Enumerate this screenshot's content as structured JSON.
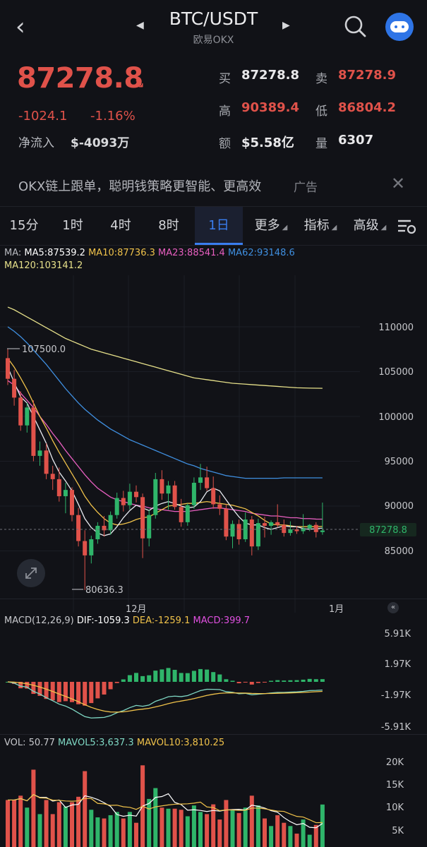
{
  "header": {
    "pair": "BTC/USDT",
    "exchange": "欧易OKX"
  },
  "ticker": {
    "last": "87278.8",
    "change": "-1024.1",
    "change_pct": "-1.16%",
    "inflow_label": "净流入",
    "inflow_value": "$-4093万",
    "bid_label": "买",
    "bid": "87278.8",
    "ask_label": "卖",
    "ask": "87278.9",
    "high_label": "高",
    "high": "90389.4",
    "low_label": "低",
    "low": "86804.2",
    "amount_label": "额",
    "amount": "$5.58亿",
    "volume_label": "量",
    "volume": "6307"
  },
  "ad": {
    "text": "OKX链上跟单，聪明钱策略更智能、更高效",
    "tag": "广告"
  },
  "tabs": [
    "15分",
    "1时",
    "4时",
    "8时",
    "1日",
    "更多",
    "指标",
    "高级"
  ],
  "active_tab": "1日",
  "ma": {
    "label": "MA:",
    "ma5": "MA5:87539.2",
    "ma10": "MA10:87736.3",
    "ma23": "MA23:88541.4",
    "ma62": "MA62:93148.6",
    "ma120": "MA120:103141.2"
  },
  "price_axis": [
    "110000",
    "105000",
    "100000",
    "95000",
    "90000",
    "85000"
  ],
  "current_price_tag": "87278.8",
  "high_marker": "107500.0",
  "low_marker": "80636.3",
  "time_axis": [
    "12月",
    "1月"
  ],
  "macd": {
    "title": "MACD(12,26,9)",
    "dif": "DIF:-1059.3",
    "dea": "DEA:-1259.1",
    "macd": "MACD:399.7",
    "axis": [
      "5.91K",
      "1.97K",
      "-1.97K",
      "-5.91K"
    ]
  },
  "vol": {
    "vol": "VOL: 50.77",
    "mavol5": "MAVOL5:3,637.3",
    "mavol10": "MAVOL10:3,810.25",
    "axis": [
      "20K",
      "15K",
      "10K",
      "5K"
    ]
  },
  "colors": {
    "up": "#2fb56a",
    "down": "#e0524a",
    "accent": "#3a7ef0",
    "ma5": "#e8eaf0",
    "ma10": "#f0c24a",
    "ma23": "#e85fc0",
    "ma62": "#3f8fe0",
    "ma120": "#e6e08a"
  },
  "chart_data": {
    "type": "candlestick",
    "interval": "1日",
    "candles": [
      {
        "o": 106500,
        "h": 107500,
        "l": 103500,
        "c": 104200
      },
      {
        "o": 104200,
        "h": 105200,
        "l": 101200,
        "c": 102100
      },
      {
        "o": 102100,
        "h": 102800,
        "l": 98400,
        "c": 99000
      },
      {
        "o": 99000,
        "h": 101500,
        "l": 98200,
        "c": 101000
      },
      {
        "o": 101000,
        "h": 101800,
        "l": 95000,
        "c": 95600
      },
      {
        "o": 95600,
        "h": 97200,
        "l": 94500,
        "c": 96200
      },
      {
        "o": 96200,
        "h": 97000,
        "l": 93000,
        "c": 93600
      },
      {
        "o": 93600,
        "h": 94500,
        "l": 91800,
        "c": 93000
      },
      {
        "o": 93000,
        "h": 94300,
        "l": 90500,
        "c": 91100
      },
      {
        "o": 91100,
        "h": 92600,
        "l": 89200,
        "c": 91800
      },
      {
        "o": 91800,
        "h": 92100,
        "l": 88300,
        "c": 89000
      },
      {
        "o": 89000,
        "h": 89800,
        "l": 85500,
        "c": 86100
      },
      {
        "o": 86100,
        "h": 87300,
        "l": 80636,
        "c": 84500
      },
      {
        "o": 84500,
        "h": 86700,
        "l": 83600,
        "c": 86300
      },
      {
        "o": 86300,
        "h": 88200,
        "l": 85800,
        "c": 87800
      },
      {
        "o": 87800,
        "h": 88900,
        "l": 86600,
        "c": 87300
      },
      {
        "o": 87300,
        "h": 89400,
        "l": 86800,
        "c": 89000
      },
      {
        "o": 89000,
        "h": 91500,
        "l": 88600,
        "c": 90900
      },
      {
        "o": 90900,
        "h": 91700,
        "l": 89400,
        "c": 90100
      },
      {
        "o": 90100,
        "h": 92500,
        "l": 89600,
        "c": 91600
      },
      {
        "o": 91600,
        "h": 92300,
        "l": 90400,
        "c": 91000
      },
      {
        "o": 91000,
        "h": 91400,
        "l": 84200,
        "c": 86400
      },
      {
        "o": 86400,
        "h": 89600,
        "l": 85500,
        "c": 89000
      },
      {
        "o": 89000,
        "h": 93700,
        "l": 88600,
        "c": 93000
      },
      {
        "o": 93000,
        "h": 94000,
        "l": 90700,
        "c": 91400
      },
      {
        "o": 91400,
        "h": 92800,
        "l": 89600,
        "c": 92300
      },
      {
        "o": 92300,
        "h": 92800,
        "l": 89600,
        "c": 89900
      },
      {
        "o": 89900,
        "h": 90800,
        "l": 87700,
        "c": 88200
      },
      {
        "o": 88200,
        "h": 90300,
        "l": 87800,
        "c": 90100
      },
      {
        "o": 90100,
        "h": 93200,
        "l": 89700,
        "c": 92600
      },
      {
        "o": 92600,
        "h": 94700,
        "l": 91800,
        "c": 93200
      },
      {
        "o": 93200,
        "h": 94400,
        "l": 91700,
        "c": 92000
      },
      {
        "o": 92000,
        "h": 93300,
        "l": 89700,
        "c": 90200
      },
      {
        "o": 90200,
        "h": 91200,
        "l": 89000,
        "c": 89700
      },
      {
        "o": 89700,
        "h": 90200,
        "l": 86200,
        "c": 86600
      },
      {
        "o": 86600,
        "h": 88400,
        "l": 85300,
        "c": 88000
      },
      {
        "o": 88000,
        "h": 88500,
        "l": 85700,
        "c": 86300
      },
      {
        "o": 86300,
        "h": 89300,
        "l": 86000,
        "c": 88500
      },
      {
        "o": 88500,
        "h": 88900,
        "l": 84500,
        "c": 85500
      },
      {
        "o": 85500,
        "h": 88600,
        "l": 85100,
        "c": 88100
      },
      {
        "o": 88100,
        "h": 88800,
        "l": 86500,
        "c": 87800
      },
      {
        "o": 87800,
        "h": 88400,
        "l": 86800,
        "c": 88200
      },
      {
        "o": 88200,
        "h": 90200,
        "l": 87600,
        "c": 87900
      },
      {
        "o": 87900,
        "h": 88500,
        "l": 86600,
        "c": 87000
      },
      {
        "o": 87000,
        "h": 88300,
        "l": 86700,
        "c": 87400
      },
      {
        "o": 87400,
        "h": 87800,
        "l": 86900,
        "c": 87200
      },
      {
        "o": 87200,
        "h": 89100,
        "l": 86900,
        "c": 87500
      },
      {
        "o": 87500,
        "h": 88000,
        "l": 87200,
        "c": 87900
      },
      {
        "o": 87900,
        "h": 88200,
        "l": 86500,
        "c": 87100
      },
      {
        "o": 87100,
        "h": 90389,
        "l": 86804,
        "c": 87279
      }
    ],
    "ma_lines": {
      "ma5": [
        105500,
        103800,
        102200,
        101500,
        100000,
        98500,
        97000,
        95200,
        93800,
        92800,
        91700,
        90200,
        88600,
        87600,
        87000,
        86700,
        86900,
        87700,
        88700,
        89500,
        90100,
        89800,
        89500,
        90000,
        90300,
        90500,
        90300,
        90000,
        89800,
        89900,
        90500,
        91600,
        92000,
        91700,
        90700,
        89700,
        88800,
        88100,
        87900,
        87900,
        87600,
        87400,
        87600,
        87800,
        87700,
        87700,
        87500,
        87400,
        87500,
        87539
      ],
      "ma10": [
        106500,
        105500,
        104300,
        103000,
        101500,
        100000,
        98700,
        97300,
        96000,
        94800,
        93600,
        92400,
        91100,
        90100,
        89300,
        88600,
        88100,
        87900,
        88000,
        88200,
        88500,
        88700,
        88800,
        89200,
        89600,
        90000,
        90100,
        90200,
        90300,
        90300,
        90400,
        90500,
        90400,
        90300,
        90200,
        90100,
        89900,
        89700,
        89300,
        88900,
        88400,
        88000,
        87900,
        87900,
        87800,
        87700,
        87700,
        87700,
        87700,
        87736
      ],
      "ma23": [
        104000,
        103500,
        102600,
        101800,
        101000,
        100000,
        99100,
        98100,
        97200,
        96200,
        95300,
        94400,
        93500,
        92700,
        92000,
        91500,
        91000,
        90700,
        90500,
        90300,
        90100,
        90000,
        89800,
        89700,
        89600,
        89500,
        89400,
        89400,
        89400,
        89500,
        89600,
        89700,
        89800,
        89800,
        89700,
        89600,
        89500,
        89400,
        89200,
        89100,
        89000,
        88900,
        88900,
        88800,
        88700,
        88700,
        88600,
        88600,
        88550,
        88541
      ],
      "ma62": [
        110000,
        109500,
        108900,
        108200,
        107400,
        106600,
        105800,
        104900,
        104000,
        103100,
        102300,
        101500,
        100800,
        100200,
        99600,
        99100,
        98600,
        98200,
        97800,
        97400,
        97100,
        96800,
        96500,
        96200,
        95900,
        95600,
        95300,
        95000,
        94700,
        94500,
        94200,
        94000,
        93800,
        93600,
        93400,
        93300,
        93200,
        93100,
        93100,
        93100,
        93100,
        93100,
        93100,
        93150,
        93150,
        93150,
        93150,
        93150,
        93149,
        93149
      ],
      "ma120": [
        112200,
        111900,
        111500,
        111100,
        110700,
        110300,
        109900,
        109500,
        109100,
        108700,
        108400,
        108100,
        107800,
        107500,
        107300,
        107100,
        106900,
        106700,
        106500,
        106300,
        106100,
        105900,
        105700,
        105500,
        105300,
        105100,
        104900,
        104700,
        104500,
        104300,
        104200,
        104100,
        104000,
        103900,
        103800,
        103700,
        103650,
        103600,
        103550,
        103500,
        103450,
        103400,
        103350,
        103300,
        103250,
        103200,
        103180,
        103160,
        103150,
        103141
      ]
    },
    "ylim": [
      80000,
      113000
    ]
  }
}
